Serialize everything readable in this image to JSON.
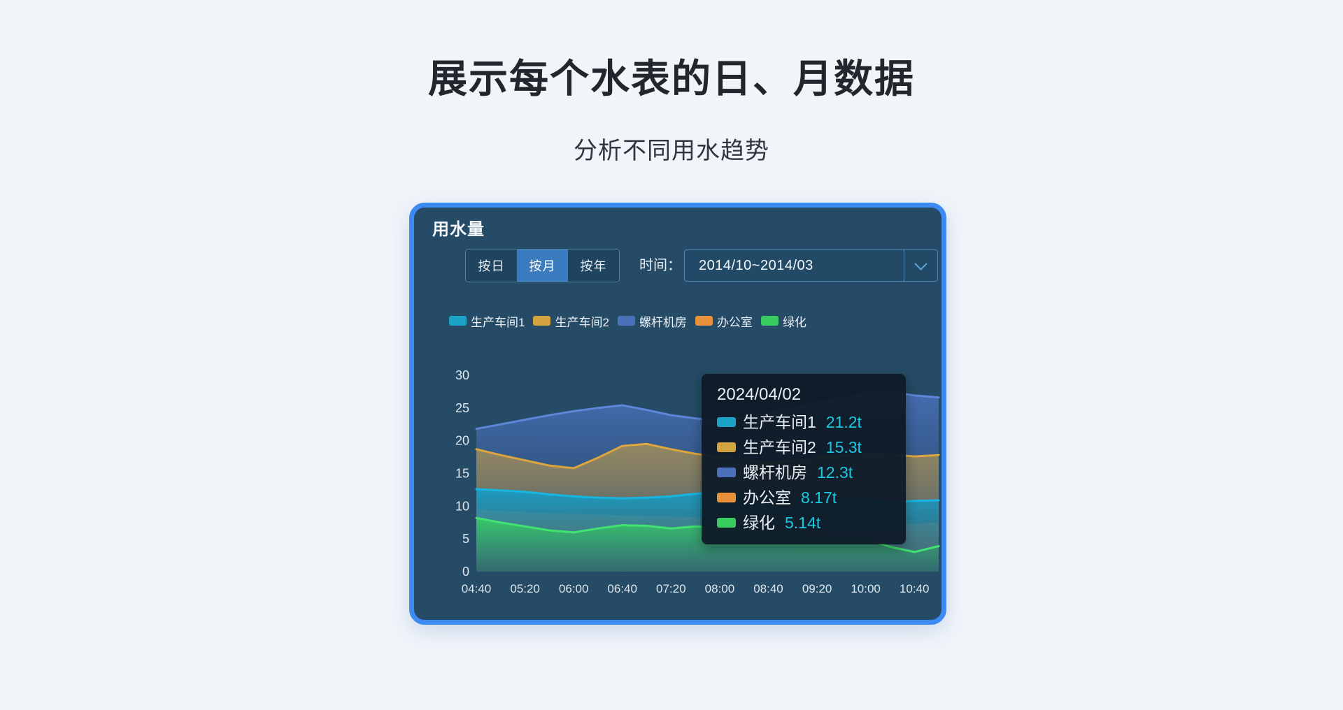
{
  "page": {
    "title": "展示每个水表的日、月数据",
    "subtitle": "分析不同用水趋势"
  },
  "card": {
    "title": "用水量",
    "tabs": [
      {
        "label": "按日",
        "active": false
      },
      {
        "label": "按月",
        "active": true
      },
      {
        "label": "按年",
        "active": false
      }
    ],
    "time_label": "时间：",
    "time_value": "2014/10~2014/03",
    "chevron_icon": "chevron-down",
    "accent_border_color": "#3D8BF2",
    "card_background_color": "#254B66"
  },
  "chart_data": {
    "type": "area",
    "title": "用水量",
    "x_tick_labels": [
      "04:40",
      "05:20",
      "06:00",
      "06:40",
      "07:20",
      "08:00",
      "08:40",
      "09:20",
      "10:00",
      "10:40"
    ],
    "x_count": 20,
    "y_ticks": [
      0,
      5,
      10,
      15,
      20,
      25,
      30
    ],
    "ylim": [
      0,
      30
    ],
    "grid": false,
    "legend_position": "top",
    "render_order": [
      2,
      1,
      3,
      0,
      4
    ],
    "series": [
      {
        "name": "生产车间1",
        "color": "#1CA2C6",
        "line_color": "#17B5E0",
        "fill_top": "rgba(23,158,198,0.95)",
        "fill_bottom": "rgba(15,105,145,0.30)",
        "values": [
          12.6,
          12.4,
          12.2,
          11.8,
          11.5,
          11.3,
          11.2,
          11.3,
          11.5,
          11.9,
          12.1,
          11.9,
          11.6,
          11.4,
          11.2,
          11.1,
          11.0,
          10.6,
          10.8,
          10.9
        ]
      },
      {
        "name": "生产车间2",
        "color": "#D2A33F",
        "line_color": "#DCA63E",
        "fill_top": "rgba(210,163,63,0.60)",
        "fill_bottom": "rgba(210,163,63,0.10)",
        "values": [
          18.7,
          17.8,
          17.0,
          16.2,
          15.8,
          17.4,
          19.2,
          19.5,
          18.7,
          18.0,
          17.5,
          17.0,
          16.7,
          16.9,
          17.3,
          17.7,
          18.0,
          17.9,
          17.6,
          17.8
        ]
      },
      {
        "name": "螺杆机房",
        "color": "#4A71BA",
        "line_color": "#5E86D8",
        "fill_top": "rgba(76,115,190,0.85)",
        "fill_bottom": "rgba(45,80,130,0.18)",
        "values": [
          21.8,
          22.5,
          23.2,
          23.9,
          24.5,
          25.0,
          25.4,
          24.7,
          23.9,
          23.4,
          23.0,
          23.5,
          24.2,
          25.0,
          25.8,
          26.5,
          27.2,
          27.5,
          26.9,
          26.6
        ]
      },
      {
        "name": "办公室",
        "color": "#E8923C",
        "line_color": null,
        "fill_top": "rgba(232,146,60,0.50)",
        "fill_bottom": "rgba(232,146,60,0.10)",
        "values": [
          9.5,
          9.3,
          9.1,
          8.9,
          8.8,
          8.7,
          8.6,
          8.5,
          8.4,
          8.3,
          8.2,
          8.1,
          8.1,
          8.0,
          8.0,
          7.9,
          7.9,
          7.6,
          7.3,
          7.5
        ]
      },
      {
        "name": "绿化",
        "color": "#3ACC60",
        "line_color": "#42E273",
        "fill_top": "rgba(58,205,98,0.92)",
        "fill_bottom": "rgba(28,150,105,0.18)",
        "values": [
          8.2,
          7.5,
          6.9,
          6.3,
          6.0,
          6.6,
          7.1,
          7.0,
          6.6,
          6.9,
          6.7,
          6.4,
          6.0,
          5.7,
          5.4,
          5.1,
          4.9,
          3.8,
          3.0,
          3.9
        ]
      }
    ]
  },
  "tooltip": {
    "title": "2024/04/02",
    "value_color": "#1DC7E0",
    "rows": [
      {
        "name": "生产车间1",
        "value": "21.2t",
        "color": "#1CA2C6"
      },
      {
        "name": "生产车间2",
        "value": "15.3t",
        "color": "#D2A33F"
      },
      {
        "name": "螺杆机房",
        "value": "12.3t",
        "color": "#4A71BA"
      },
      {
        "name": "办公室",
        "value": "8.17t",
        "color": "#E8923C"
      },
      {
        "name": "绿化",
        "value": "5.14t",
        "color": "#3ACC60"
      }
    ]
  }
}
